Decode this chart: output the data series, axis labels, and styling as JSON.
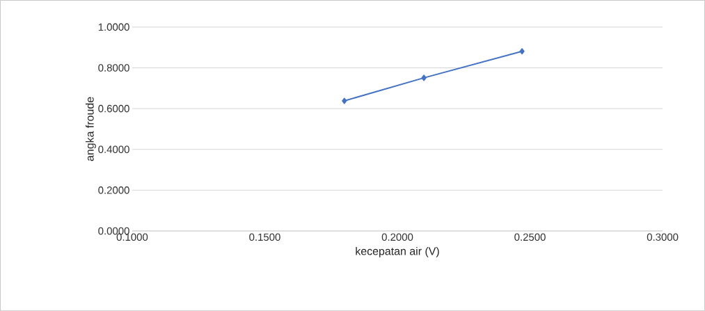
{
  "chart_data": {
    "type": "line",
    "xlabel": "kecepatan air (V)",
    "ylabel": "angka froude",
    "x": [
      0.18,
      0.21,
      0.247
    ],
    "series": [
      {
        "color": "#4472c4",
        "values": [
          0.638,
          0.751,
          0.881
        ]
      }
    ],
    "xlim": [
      0.1,
      0.3
    ],
    "ylim": [
      0,
      1
    ],
    "xticks": [
      {
        "value": 0.1,
        "label": "0.1000"
      },
      {
        "value": 0.15,
        "label": "0.1500"
      },
      {
        "value": 0.2,
        "label": "0.2000"
      },
      {
        "value": 0.25,
        "label": "0.2500"
      },
      {
        "value": 0.3,
        "label": "0.3000"
      }
    ],
    "yticks": [
      {
        "value": 0,
        "label": "0.0000"
      },
      {
        "value": 0.2,
        "label": "0.2000"
      },
      {
        "value": 0.4,
        "label": "0.4000"
      },
      {
        "value": 0.6,
        "label": "0.6000"
      },
      {
        "value": 0.8,
        "label": "0.8000"
      },
      {
        "value": 1,
        "label": "1.0000"
      }
    ],
    "grid": "y",
    "marker": "diamond",
    "line_style": "solid"
  }
}
